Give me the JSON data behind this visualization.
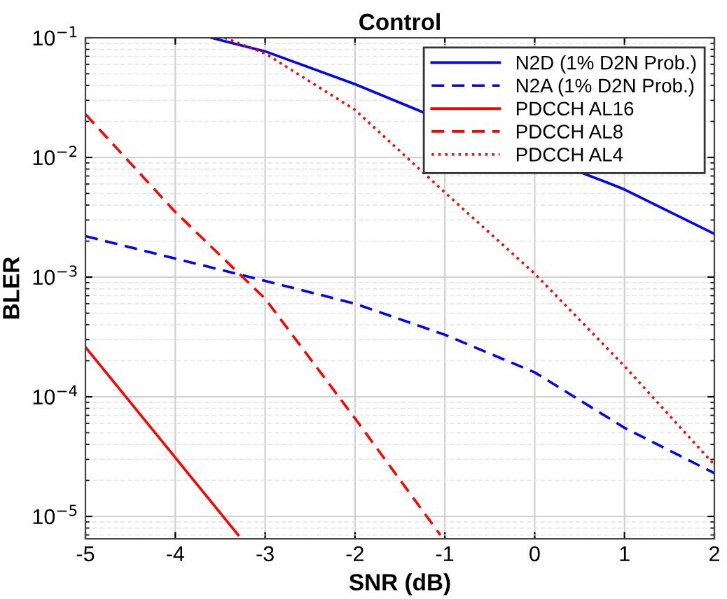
{
  "chart_data": {
    "type": "line",
    "title": "Control",
    "xlabel": "SNR (dB)",
    "ylabel": "BLER",
    "log": "y",
    "grid": true,
    "legend": "top right",
    "xlim": [
      -5,
      2
    ],
    "xticks": [
      -5,
      -4,
      -3,
      -2,
      -1,
      0,
      1,
      2
    ],
    "ylim": [
      6.5e-06,
      0.1
    ],
    "yticks": [
      {
        "value": 1e-05,
        "label": "10$^{−5}$"
      },
      {
        "value": 0.0001,
        "label": "10$^{−4}$"
      },
      {
        "value": 0.001,
        "label": "10$^{−3}$"
      },
      {
        "value": 0.01,
        "label": "10$^{−2}$"
      },
      {
        "value": 0.1,
        "label": "10$^{−1}$"
      }
    ],
    "series": [
      {
        "name": "N2D (1% D2N Prob.)",
        "color": "#0000ff",
        "line_style": "solid",
        "x": [
          -3.6,
          -3,
          -2,
          -1.25,
          0.8,
          1,
          2
        ],
        "values": [
          0.1,
          0.077,
          0.041,
          0.024,
          0.0062,
          0.0054,
          0.0023
        ]
      },
      {
        "name": "N2A (1% D2N Prob.)",
        "color": "#0000ff",
        "line_style": "dashed",
        "x": [
          -5,
          -3,
          -2,
          -1,
          0,
          1,
          2
        ],
        "values": [
          0.0022,
          0.00093,
          0.0006,
          0.00033,
          0.00016,
          5.5e-05,
          2.3e-05
        ]
      },
      {
        "name": "PDCCH AL16",
        "color": "#ff0000",
        "line_style": "solid",
        "x": [
          -5,
          -4,
          -3.3
        ],
        "values": [
          0.00026,
          3.1e-05,
          7e-06
        ]
      },
      {
        "name": "PDCCH AL8",
        "color": "#ff0000",
        "line_style": "dashed",
        "x": [
          -5,
          -4,
          -3,
          -2,
          -1.05
        ],
        "values": [
          0.023,
          0.0035,
          0.00066,
          6.6e-05,
          7e-06
        ]
      },
      {
        "name": "PDCCH AL4",
        "color": "#ff0000",
        "line_style": "dotted",
        "x": [
          -3.45,
          -3,
          -2,
          -1,
          0,
          1,
          2
        ],
        "values": [
          0.1,
          0.074,
          0.025,
          0.0051,
          0.00107,
          0.00018,
          2.7e-05
        ]
      }
    ]
  }
}
